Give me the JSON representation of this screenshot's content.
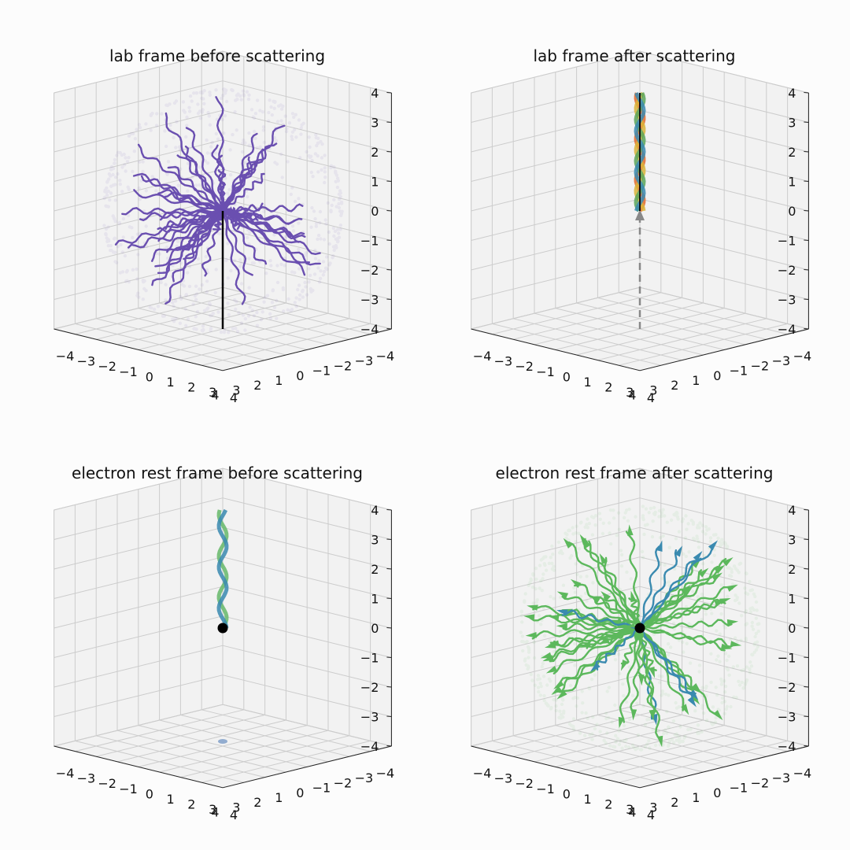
{
  "chart_data": [
    {
      "type": "scatter",
      "subtype": "3d-trajectories",
      "title": "lab frame before scattering",
      "axis_ticks": {
        "x": [
          "−4",
          "−3",
          "−2",
          "−1",
          "0",
          "1",
          "2",
          "3",
          "4"
        ],
        "y": [
          "4",
          "3",
          "2",
          "1",
          "0",
          "−1",
          "−2",
          "−3",
          "−4"
        ],
        "z": [
          "4",
          "3",
          "2",
          "1",
          "0",
          "−1",
          "−2",
          "−3",
          "−4"
        ]
      },
      "xlim": [
        -4,
        4
      ],
      "ylim": [
        -4,
        4
      ],
      "zlim": [
        -4,
        4
      ],
      "grid": true,
      "colors": {
        "photons": "#6a4fb0",
        "electron_track": "#000000"
      },
      "series": [
        {
          "role": "photon trajectories radiating from the origin",
          "count": 60,
          "end_radius": 4
        },
        {
          "role": "electron path along vertical axis",
          "z_from": -4,
          "z_to": 0
        }
      ]
    },
    {
      "type": "scatter",
      "subtype": "3d-trajectories",
      "title": "lab frame after scattering",
      "axis_ticks": {
        "x": [
          "−4",
          "−3",
          "−2",
          "−1",
          "0",
          "1",
          "2",
          "3",
          "4"
        ],
        "y": [
          "4",
          "3",
          "2",
          "1",
          "0",
          "−1",
          "−2",
          "−3",
          "−4"
        ],
        "z": [
          "4",
          "3",
          "2",
          "1",
          "0",
          "−1",
          "−2",
          "−3",
          "−4"
        ]
      },
      "xlim": [
        -4,
        4
      ],
      "ylim": [
        -4,
        4
      ],
      "zlim": [
        -4,
        4
      ],
      "grid": true,
      "colors": {
        "beam": [
          "#e36a2c",
          "#d9b43a",
          "#5aa65a",
          "#3a8ab0"
        ],
        "electron_track": "#888888"
      },
      "series": [
        {
          "role": "scattered photon beam along vertical axis",
          "z_from": 0,
          "z_to": 4
        },
        {
          "role": "electron path (dashed)",
          "z_from": -4,
          "z_to": 0
        }
      ]
    },
    {
      "type": "scatter",
      "subtype": "3d-trajectories",
      "title": "electron rest frame before scattering",
      "axis_ticks": {
        "x": [
          "−4",
          "−3",
          "−2",
          "−1",
          "0",
          "1",
          "2",
          "3",
          "4"
        ],
        "y": [
          "4",
          "3",
          "2",
          "1",
          "0",
          "−1",
          "−2",
          "−3",
          "−4"
        ],
        "z": [
          "4",
          "3",
          "2",
          "1",
          "0",
          "−1",
          "−2",
          "−3",
          "−4"
        ]
      },
      "xlim": [
        -4,
        4
      ],
      "ylim": [
        -4,
        4
      ],
      "zlim": [
        -4,
        4
      ],
      "grid": true,
      "colors": {
        "beam": [
          "#66b86a",
          "#3a8ab0"
        ],
        "electron": "#000000"
      },
      "series": [
        {
          "role": "incoming photon beam along vertical axis",
          "z_from": 0,
          "z_to": 4
        },
        {
          "role": "electron at rest",
          "x": 0,
          "y": 0,
          "z": 0
        }
      ]
    },
    {
      "type": "scatter",
      "subtype": "3d-trajectories",
      "title": "electron rest frame after scattering",
      "axis_ticks": {
        "x": [
          "−4",
          "−3",
          "−2",
          "−1",
          "0",
          "1",
          "2",
          "3",
          "4"
        ],
        "y": [
          "4",
          "3",
          "2",
          "1",
          "0",
          "−1",
          "−2",
          "−3",
          "−4"
        ],
        "z": [
          "4",
          "3",
          "2",
          "1",
          "0",
          "−1",
          "−2",
          "−3",
          "−4"
        ]
      },
      "xlim": [
        -4,
        4
      ],
      "ylim": [
        -4,
        4
      ],
      "zlim": [
        -4,
        4
      ],
      "grid": true,
      "colors": {
        "photons": [
          "#5cb85c",
          "#3a8ab0"
        ],
        "electron": "#000000"
      },
      "series": [
        {
          "role": "scattered photon trajectories with arrowheads",
          "count": 60,
          "end_radius": 4
        },
        {
          "role": "electron at rest",
          "x": 0,
          "y": 0,
          "z": 0
        }
      ]
    }
  ]
}
